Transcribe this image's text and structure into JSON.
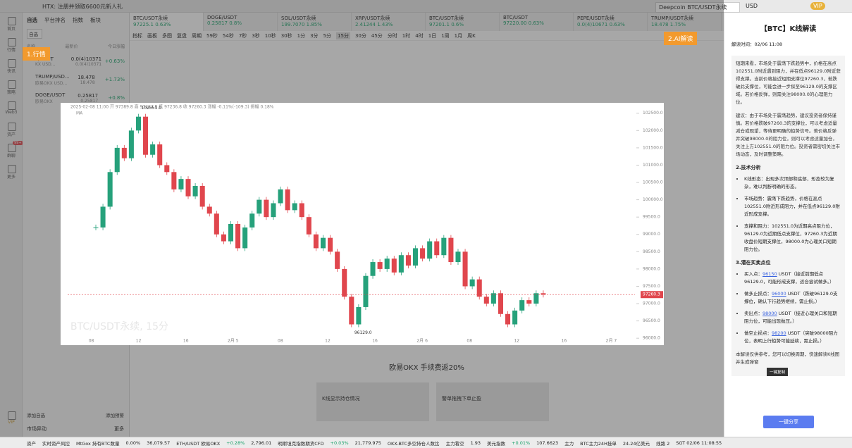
{
  "topbar": {
    "notice": "HTX: 注册并领取6600元新人礼",
    "search": "Deepcoin BTC/USDT永续",
    "currency": "USD",
    "vip": "VIP"
  },
  "sidebar": {
    "items": [
      "首页",
      "行情",
      "快讯",
      "策略",
      "Web3",
      "资产",
      "群聊",
      "更多"
    ],
    "badge": "99+",
    "vip": "VIP"
  },
  "watchlist": {
    "tabs": [
      "自选",
      "平台排名",
      "指数",
      "板块"
    ],
    "filter": "自选",
    "columns": [
      "名称",
      "最新价",
      "今日涨幅"
    ],
    "rows": [
      {
        "symbol": "T/USDT",
        "sub": "KX USD...",
        "price": "0.0(4)10371",
        "sub_price": "0.0(4)10371",
        "change": "+0.63%"
      },
      {
        "symbol": "TRUMP/USD...",
        "sub": "欧易OKX USD...",
        "price": "18.478",
        "sub_price": "18.478",
        "change": "+1.73%"
      },
      {
        "symbol": "DOGE/USDT",
        "sub": "欧易OKX",
        "price": "0.25817",
        "sub_price": "0.25817",
        "change": "+0.8%"
      }
    ],
    "add": "添加自选",
    "alert": "添加预警",
    "market_move": "市场异动",
    "more": "更多"
  },
  "tabs": [
    {
      "name": "BTC/USDT永续",
      "price": "97225.1",
      "change": "0.63%"
    },
    {
      "name": "DOGE/USDT",
      "price": "0.25817",
      "change": "0.8%"
    },
    {
      "name": "SOL/USDT永续",
      "price": "199.7070",
      "change": "1.85%"
    },
    {
      "name": "XRP/USDT永续",
      "price": "2.41244",
      "change": "1.43%"
    },
    {
      "name": "BTC/USDT永续",
      "price": "97201.1",
      "change": "0.6%"
    },
    {
      "name": "BTC/USDT",
      "price": "97220.00",
      "change": "0.63%"
    },
    {
      "name": "PEPE/USDT永续",
      "price": "0.0(4)10671",
      "change": "0.63%"
    },
    {
      "name": "TRUMP/USDT永续",
      "price": "18.478",
      "change": "1.75%"
    }
  ],
  "toolbar": {
    "items": [
      "指标",
      "画板",
      "多图",
      "复盘",
      "周期",
      "59秒",
      "54秒",
      "7秒",
      "3秒",
      "10秒",
      "30秒",
      "1分",
      "3分",
      "5分",
      "15分",
      "30分",
      "45分",
      "分时",
      "1时",
      "4时",
      "1日",
      "1周",
      "1月",
      "周K"
    ],
    "active": 14
  },
  "annotations": [
    "1.行情",
    "2.AI解读"
  ],
  "chart": {
    "type": "candlestick",
    "header": "2025-02-08 11:00 开 97389.8 高 97414.8 低 97236.8 收 97260.3 涨幅 -0.11%(-109.3) 振幅 0.18%",
    "indicator": "MA",
    "watermark": "BTC/USDT永续, 15分",
    "high_label": "102551.0",
    "low_label": "96129.0",
    "last_price": 97260.3,
    "up_color": "#26a17b",
    "down_color": "#e0464d",
    "categories": [
      "08",
      "12",
      "16",
      "2月 5",
      "08",
      "12",
      "16",
      "2月 6",
      "08",
      "12",
      "16",
      "2月 7"
    ],
    "closes": [
      99200,
      99800,
      100800,
      101500,
      101200,
      102000,
      102400,
      101300,
      101600,
      101000,
      100800,
      100300,
      100600,
      100100,
      100400,
      99800,
      99600,
      99000,
      98800,
      99300,
      98600,
      99200,
      99600,
      100000,
      99500,
      99900,
      100300,
      99700,
      99900,
      99500,
      99000,
      98600,
      98900,
      98500,
      98000,
      97200,
      96400,
      96900,
      97800,
      98200,
      98000,
      98300,
      97900,
      98400,
      98100,
      98600,
      98300,
      98800,
      98400,
      98900,
      98200,
      98500,
      97500,
      97700,
      97200,
      97000,
      97300,
      96700,
      96400,
      96800,
      97100,
      97000,
      97300,
      97260
    ],
    "ylim": [
      95800,
      102800
    ],
    "yticks": [
      {
        "value": 102500,
        "label": "102500.0"
      },
      {
        "value": 102000,
        "label": "102000.0"
      },
      {
        "value": 101500,
        "label": "101500.0"
      },
      {
        "value": 101000,
        "label": "101000.0"
      },
      {
        "value": 100500,
        "label": "100500.0"
      },
      {
        "value": 100000,
        "label": "100000.0"
      },
      {
        "value": 99500,
        "label": "99500.0"
      },
      {
        "value": 99000,
        "label": "99000.0"
      },
      {
        "value": 98500,
        "label": "98500.0"
      },
      {
        "value": 98000,
        "label": "98000.0"
      },
      {
        "value": 97500,
        "label": "97500.0"
      },
      {
        "value": 97000,
        "label": "97000.0"
      },
      {
        "value": 96500,
        "label": "96500.0"
      },
      {
        "value": 96000,
        "label": "96000.0"
      }
    ]
  },
  "ai_panel": {
    "title": "【BTC】K线解读",
    "time": "解读时间：02/06 11:08",
    "paragraphs": [
      "短期来看，市场处于震荡下跌趋势中，价格在高点102551.0附近遇到阻力，并在低点96129.0附近获得支撑。当前价格接近短期支撑位97260.3，若跌破此支撑位，可能会进一步探至96129.0的支撑区域。若价格反弹，则需关注98000.0的心理阻力位。",
      "建议：由于市场处于震荡趋势，建议投资者保持谨慎。若价格跌破97260.3的支撑位，可以考虑适量减仓或观望，等待更明确的趋势信号。若价格反弹并突破98000.0的阻力位，则可以考虑适量加仓，关注上方102551.0的阻力位。投资者需密切关注市场动态，及时调整策略。"
    ],
    "tech_heading": "2.技术分析",
    "tech_points": [
      "K线形态：出现多次顶部和底部，形态较为复杂，难以判断明确的形态。",
      "市场趋势：震荡下跌趋势，价格在高点102551.0附近形成阻力，并在低点96129.0附近形成支撑。",
      "支撑和阻力：102551.0为近期高点阻力位，96129.0为近期低点支撑位，97260.3为近期收盘价短期支撑位，98000.0为心理关口短期阻力位。"
    ],
    "trade_heading": "3.潜在买卖点位",
    "trade_points": [
      {
        "label": "买入点：",
        "price": 96150,
        "unit": "USDT",
        "note": "（接近前期低点96129.0，可能形成支撑，适合尝试做多。）"
      },
      {
        "label": "做多止损点：",
        "price": 96000,
        "unit": "USDT",
        "note": "（跌破96129.0支撑位，确认下行趋势继续，需止损。）"
      },
      {
        "label": "卖出点：",
        "price": 98000,
        "unit": "USDT",
        "note": "（接近心理关口和短期阻力位，可能出现抛压。）"
      },
      {
        "label": "做空止损点：",
        "price": 98200,
        "unit": "USDT",
        "note": "（突破98000阻力位，表明上行趋势可能延续，需止损。）"
      }
    ],
    "disclaimer": "本解读仅供参考，您可以切换周期，快速解读K线图并生成弹窗",
    "tooltip": "一键复制",
    "share": "一键分享"
  },
  "promo": {
    "title": "欧易OKX 手续费返20%",
    "card1": "K线显示持仓情况",
    "card2": "警单拖拽下单止盈"
  },
  "statusbar": [
    "资产",
    "实时资产风控",
    "MtGox 持有BTC数量",
    "0.00%",
    "36,079.57",
    "ETH/USDT 欧易OKX",
    "+0.28%",
    "2,796.01",
    "明斯坦克指数期货CFD",
    "+0.03%",
    "21,779.975",
    "OKX-BTC多空持仓人数比",
    "主力看空",
    "1.93",
    "美元指数",
    "+0.01%",
    "107.6623",
    "主力",
    "BTC主力24H挂单",
    "24.24亿美元",
    "线路 2",
    "SGT 02/06 11:08:55"
  ]
}
